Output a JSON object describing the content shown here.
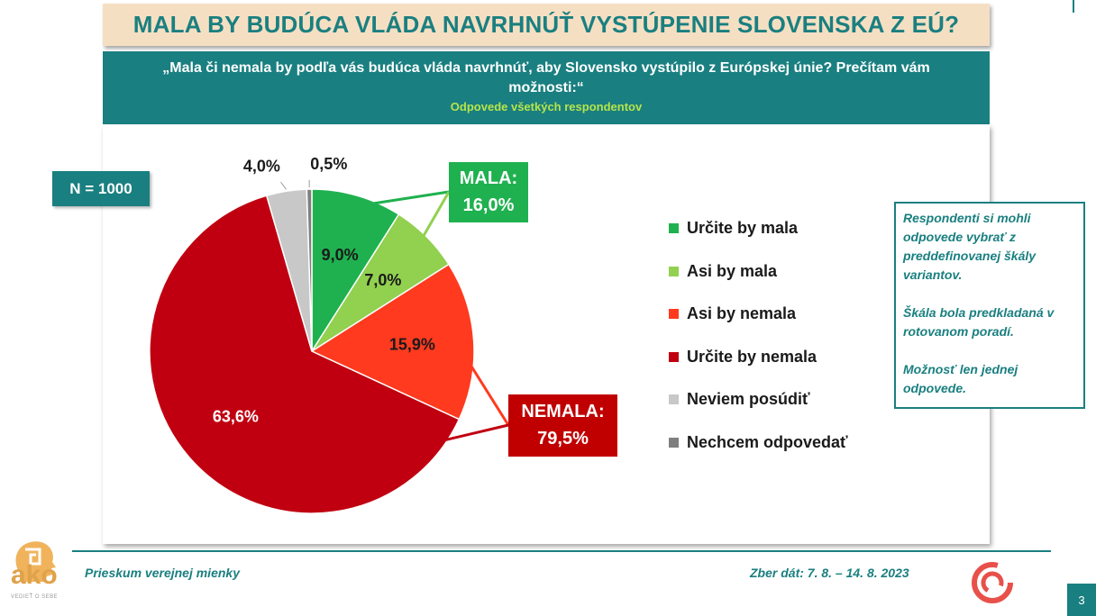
{
  "header": {
    "title": "MALA BY BUDÚCA VLÁDA NAVRHNÚŤ VYSTÚPENIE SLOVENSKA Z EÚ?",
    "question": "„Mala či nemala by podľa vás budúca vláda navrhnúť, aby Slovensko vystúpilo z Európskej únie? Prečítam vám možnosti:“",
    "subtitle": "Odpovede všetkých respondentov"
  },
  "badge": {
    "n_label": "N = 1000"
  },
  "groups": {
    "mala_label": "MALA:",
    "mala_value": "16,0%",
    "nemala_label": "NEMALA:",
    "nemala_value": "79,5%"
  },
  "note": {
    "p1": "Respondenti si mohli odpovede vybrať z preddefinovanej škály variantov.",
    "p2": "Škála bola predkladaná v rotovanom poradí.",
    "p3": "Možnosť len jednej odpovede."
  },
  "footer": {
    "left": "Prieskum verejnej mienky",
    "right": "Zber dát: 7. 8. – 14. 8. 2023",
    "page": "3"
  },
  "logo": {
    "text": "ako",
    "tagline": "VEDIEŤ O SEBE"
  },
  "colors": {
    "teal": "#1a7f80",
    "lime": "#b5e44b"
  },
  "chart_data": {
    "type": "pie",
    "title": "",
    "slices": [
      {
        "label": "Určite by mala",
        "value": 9.0,
        "display": "9,0%",
        "color": "#1fb14f"
      },
      {
        "label": "Asi by mala",
        "value": 7.0,
        "display": "7,0%",
        "color": "#92d050"
      },
      {
        "label": "Asi by nemala",
        "value": 15.9,
        "display": "15,9%",
        "color": "#ff3a1f"
      },
      {
        "label": "Určite by nemala",
        "value": 63.6,
        "display": "63,6%",
        "color": "#c00010"
      },
      {
        "label": "Neviem posúdiť",
        "value": 4.0,
        "display": "4,0%",
        "color": "#c8c8c8"
      },
      {
        "label": "Nechcem odpovedať",
        "value": 0.5,
        "display": "0,5%",
        "color": "#7f7f7f"
      }
    ],
    "legend_position": "right",
    "start_angle": "12 o'clock, clockwise"
  }
}
